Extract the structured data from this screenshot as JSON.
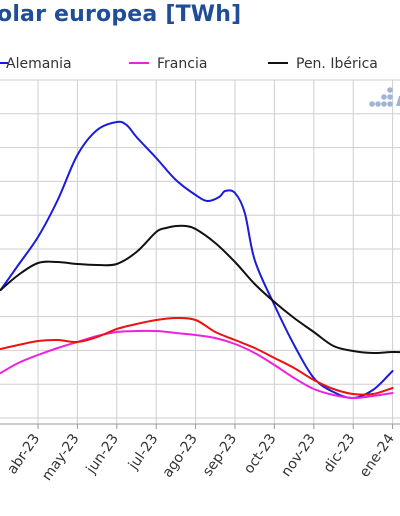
{
  "chart_data": {
    "type": "line",
    "title": "olar europea [TWh]",
    "xlabel": "",
    "ylabel": "",
    "categories": [
      "abr-23",
      "may-23",
      "jun-23",
      "jul-23",
      "ago-23",
      "sep-23",
      "oct-23",
      "nov-23",
      "dic-23",
      "ene-24"
    ],
    "grid": true,
    "legend_position": "top",
    "series": [
      {
        "name": "Alemania",
        "color": "#1a1adb",
        "points": [
          [
            -0.95,
            290
          ],
          [
            -0.5,
            265
          ],
          [
            0,
            237
          ],
          [
            0.5,
            200
          ],
          [
            1,
            155
          ],
          [
            1.5,
            130
          ],
          [
            2,
            122
          ],
          [
            2.25,
            125
          ],
          [
            2.5,
            137
          ],
          [
            3,
            158
          ],
          [
            3.5,
            180
          ],
          [
            4,
            195
          ],
          [
            4.3,
            201
          ],
          [
            4.6,
            197
          ],
          [
            4.75,
            191
          ],
          [
            5,
            193
          ],
          [
            5.25,
            213
          ],
          [
            5.5,
            260
          ],
          [
            6,
            305
          ],
          [
            6.5,
            345
          ],
          [
            7,
            378
          ],
          [
            7.5,
            392
          ],
          [
            8,
            398
          ],
          [
            8.5,
            390
          ],
          [
            8.9,
            375
          ],
          [
            9,
            371
          ]
        ]
      },
      {
        "name": "Francia",
        "color": "#ee22dd",
        "points": [
          [
            -0.95,
            373
          ],
          [
            -0.5,
            363
          ],
          [
            0,
            355
          ],
          [
            0.5,
            348
          ],
          [
            1,
            342
          ],
          [
            1.5,
            336
          ],
          [
            2,
            332
          ],
          [
            2.5,
            331
          ],
          [
            3,
            331
          ],
          [
            3.5,
            333
          ],
          [
            4,
            335
          ],
          [
            4.5,
            338
          ],
          [
            5,
            344
          ],
          [
            5.5,
            353
          ],
          [
            6,
            365
          ],
          [
            6.5,
            378
          ],
          [
            7,
            389
          ],
          [
            7.5,
            395
          ],
          [
            8,
            398
          ],
          [
            8.5,
            396
          ],
          [
            9,
            393
          ]
        ]
      },
      {
        "name": "",
        "color": "#ee1111",
        "points": [
          [
            -0.95,
            349
          ],
          [
            -0.5,
            345
          ],
          [
            0,
            341
          ],
          [
            0.5,
            340
          ],
          [
            1,
            342
          ],
          [
            1.5,
            337
          ],
          [
            2,
            329
          ],
          [
            2.5,
            324
          ],
          [
            3,
            320
          ],
          [
            3.5,
            318
          ],
          [
            4,
            320
          ],
          [
            4.5,
            332
          ],
          [
            5,
            340
          ],
          [
            5.5,
            348
          ],
          [
            6,
            358
          ],
          [
            6.5,
            368
          ],
          [
            7,
            380
          ],
          [
            7.5,
            389
          ],
          [
            8,
            394
          ],
          [
            8.5,
            394
          ],
          [
            9,
            388
          ]
        ]
      },
      {
        "name": "Pen. Ibérica",
        "color": "#111111",
        "points": [
          [
            -0.95,
            290
          ],
          [
            -0.5,
            275
          ],
          [
            0,
            263
          ],
          [
            0.5,
            262
          ],
          [
            1,
            264
          ],
          [
            1.5,
            265
          ],
          [
            2,
            264
          ],
          [
            2.5,
            252
          ],
          [
            3,
            232
          ],
          [
            3.25,
            228
          ],
          [
            3.5,
            226
          ],
          [
            3.75,
            226
          ],
          [
            4,
            229
          ],
          [
            4.5,
            243
          ],
          [
            5,
            262
          ],
          [
            5.5,
            284
          ],
          [
            6,
            302
          ],
          [
            6.5,
            318
          ],
          [
            7,
            332
          ],
          [
            7.5,
            346
          ],
          [
            8,
            351
          ],
          [
            8.5,
            353
          ],
          [
            9,
            352
          ],
          [
            9.5,
            352
          ],
          [
            9.95,
            348
          ]
        ]
      }
    ]
  }
}
